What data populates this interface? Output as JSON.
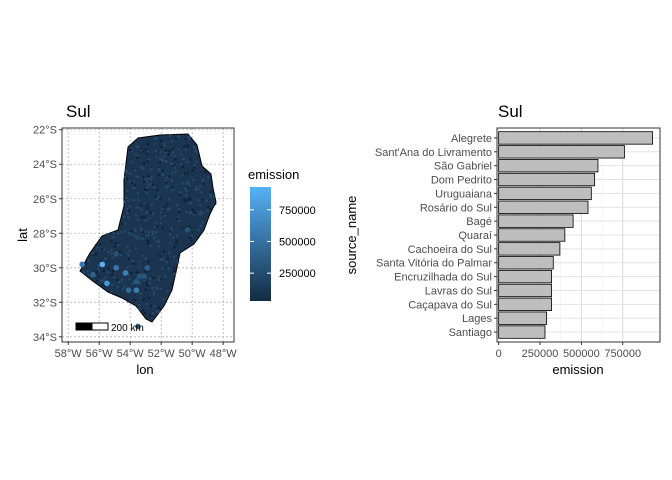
{
  "chart_data": [
    {
      "type": "map",
      "title": "Sul",
      "xlabel": "lon",
      "ylabel": "lat",
      "x_ticks": [
        "58°W",
        "56°W",
        "54°W",
        "52°W",
        "50°W",
        "48°W"
      ],
      "x_tick_values": [
        -58,
        -56,
        -54,
        -52,
        -50,
        -48
      ],
      "y_ticks": [
        "22°S",
        "24°S",
        "26°S",
        "28°S",
        "30°S",
        "32°S",
        "34°S"
      ],
      "y_tick_values": [
        -22,
        -24,
        -26,
        -28,
        -30,
        -32,
        -34
      ],
      "xlim": [
        -58.4,
        -47.3
      ],
      "ylim": [
        -34.3,
        -21.9
      ],
      "grid": true,
      "legend": {
        "title": "emission",
        "labels": [
          "750000",
          "500000",
          "250000"
        ],
        "values": [
          750000,
          500000,
          250000
        ],
        "range": [
          30000,
          930000
        ],
        "color_low": "#132b43",
        "color_high": "#56b1f7",
        "placement": "right"
      },
      "scale_bar_label": "200 km",
      "fill_color": "#1b3550",
      "point_color_default": "#132b43",
      "points": [
        {
          "lon": -55.8,
          "lat": -29.8,
          "emission": 930000
        },
        {
          "lon": -55.5,
          "lat": -30.9,
          "emission": 760000
        },
        {
          "lon": -54.3,
          "lat": -30.3,
          "emission": 600000
        },
        {
          "lon": -53.6,
          "lat": -31.3,
          "emission": 580000
        },
        {
          "lon": -57.1,
          "lat": -29.8,
          "emission": 560000
        },
        {
          "lon": -54.9,
          "lat": -30.0,
          "emission": 540000
        },
        {
          "lon": -54.1,
          "lat": -31.3,
          "emission": 450000
        },
        {
          "lon": -56.4,
          "lat": -30.4,
          "emission": 400000
        },
        {
          "lon": -52.9,
          "lat": -30.0,
          "emission": 370000
        },
        {
          "lon": -53.5,
          "lat": -33.4,
          "emission": 330000
        },
        {
          "lon": -53.1,
          "lat": -30.5,
          "emission": 320000
        },
        {
          "lon": -53.6,
          "lat": -30.8,
          "emission": 320000
        },
        {
          "lon": -53.4,
          "lat": -30.5,
          "emission": 320000
        },
        {
          "lon": -50.3,
          "lat": -27.8,
          "emission": 290000
        },
        {
          "lon": -54.9,
          "lat": -29.2,
          "emission": 280000
        }
      ]
    },
    {
      "type": "bar",
      "orientation": "horizontal",
      "title": "Sul",
      "xlabel": "emission",
      "ylabel": "source_name",
      "categories": [
        "Alegrete",
        "Sant'Ana do Livramento",
        "São Gabriel",
        "Dom Pedrito",
        "Uruguaiana",
        "Rosário do Sul",
        "Bagé",
        "Quaraí",
        "Cachoeira do Sul",
        "Santa Vitória do Palmar",
        "Encruzilhada do Sul",
        "Lavras do Sul",
        "Caçapava do Sul",
        "Lages",
        "Santiago"
      ],
      "values": [
        930000,
        760000,
        600000,
        580000,
        560000,
        540000,
        450000,
        400000,
        370000,
        330000,
        320000,
        320000,
        320000,
        290000,
        280000
      ],
      "x_ticks": [
        "0",
        "250000",
        "500000",
        "750000"
      ],
      "x_tick_values": [
        0,
        250000,
        500000,
        750000
      ],
      "xlim": [
        -10000,
        975000
      ],
      "grid": true,
      "bar_fill": "#bebebe",
      "bar_outline": "#000000"
    }
  ]
}
